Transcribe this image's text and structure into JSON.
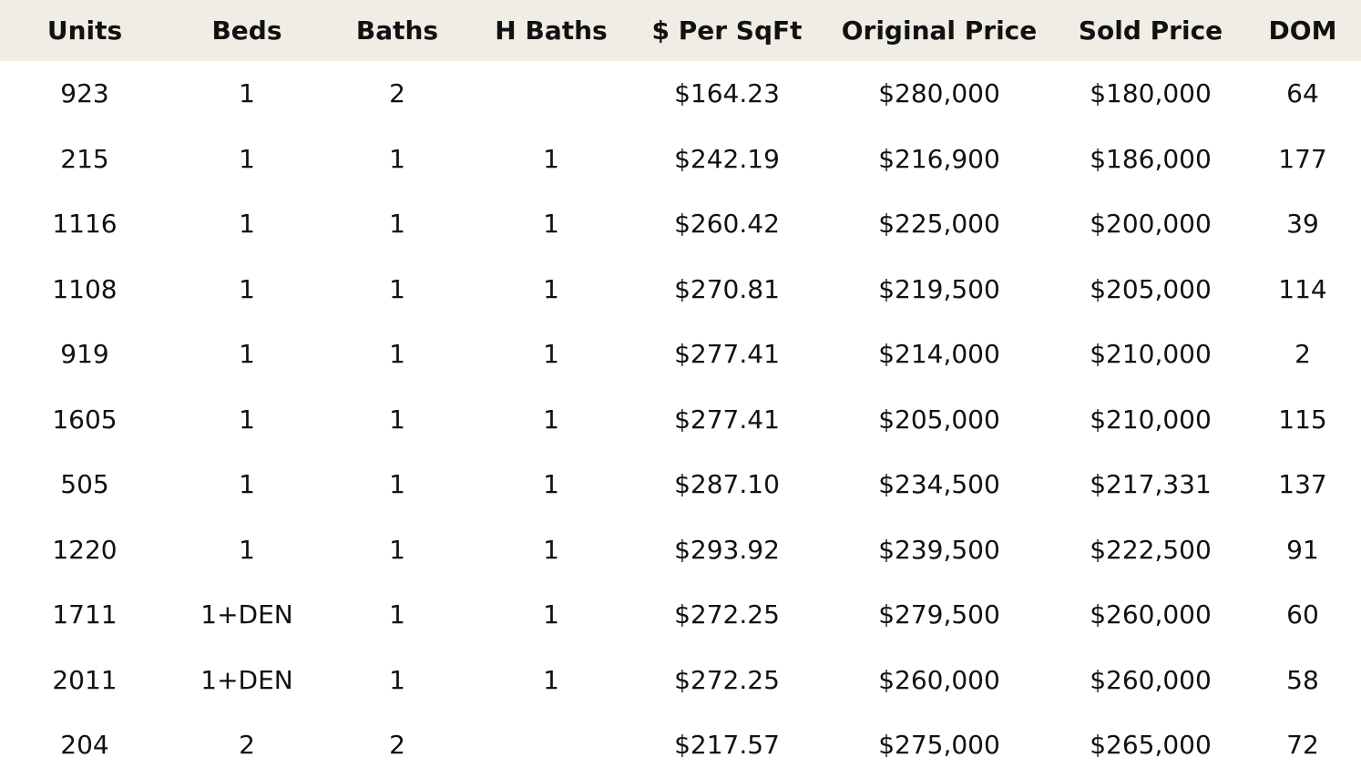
{
  "table": {
    "headers": [
      "Units",
      "Beds",
      "Baths",
      "H Baths",
      "$ Per SqFt",
      "Original Price",
      "Sold Price",
      "DOM"
    ],
    "rows": [
      [
        "923",
        "1",
        "2",
        "",
        "$164.23",
        "$280,000",
        "$180,000",
        "64"
      ],
      [
        "215",
        "1",
        "1",
        "1",
        "$242.19",
        "$216,900",
        "$186,000",
        "177"
      ],
      [
        "1116",
        "1",
        "1",
        "1",
        "$260.42",
        "$225,000",
        "$200,000",
        "39"
      ],
      [
        "1108",
        "1",
        "1",
        "1",
        "$270.81",
        "$219,500",
        "$205,000",
        "114"
      ],
      [
        "919",
        "1",
        "1",
        "1",
        "$277.41",
        "$214,000",
        "$210,000",
        "2"
      ],
      [
        "1605",
        "1",
        "1",
        "1",
        "$277.41",
        "$205,000",
        "$210,000",
        "115"
      ],
      [
        "505",
        "1",
        "1",
        "1",
        "$287.10",
        "$234,500",
        "$217,331",
        "137"
      ],
      [
        "1220",
        "1",
        "1",
        "1",
        "$293.92",
        "$239,500",
        "$222,500",
        "91"
      ],
      [
        "1711",
        "1+DEN",
        "1",
        "1",
        "$272.25",
        "$279,500",
        "$260,000",
        "60"
      ],
      [
        "2011",
        "1+DEN",
        "1",
        "1",
        "$272.25",
        "$260,000",
        "$260,000",
        "58"
      ],
      [
        "204",
        "2",
        "2",
        "",
        "$217.57",
        "$275,000",
        "$265,000",
        "72"
      ]
    ]
  },
  "colors": {
    "header_background": "#efede4",
    "text": "#111111",
    "background": "#ffffff"
  }
}
